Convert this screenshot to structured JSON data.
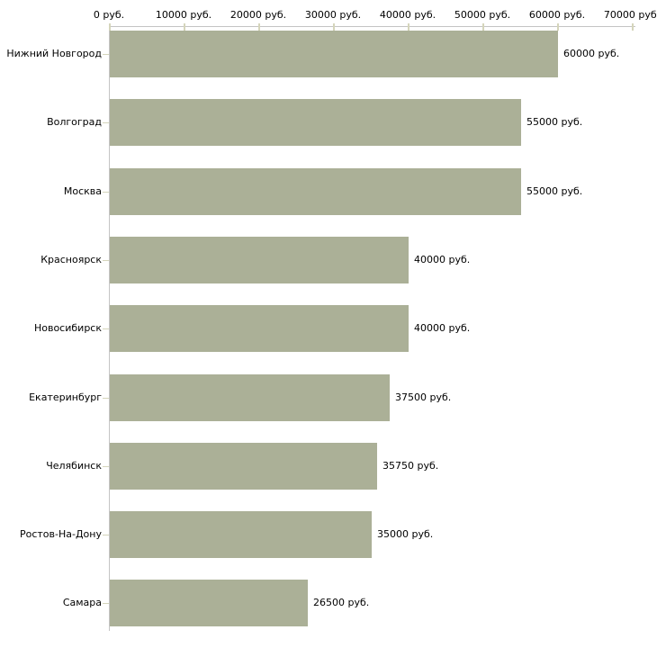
{
  "chart_data": {
    "type": "bar",
    "orientation": "horizontal",
    "title": "",
    "xlabel": "",
    "ylabel": "",
    "categories": [
      "Нижний Новгород",
      "Волгоград",
      "Москва",
      "Красноярск",
      "Новосибирск",
      "Екатеринбург",
      "Челябинск",
      "Ростов-На-Дону",
      "Самара"
    ],
    "values": [
      60000,
      55000,
      55000,
      40000,
      40000,
      37500,
      35750,
      35000,
      26500
    ],
    "value_labels": [
      "60000 руб.",
      "55000 руб.",
      "55000 руб.",
      "40000 руб.",
      "40000 руб.",
      "37500 руб.",
      "35750 руб.",
      "35000 руб.",
      "26500 руб."
    ],
    "x_axis": {
      "position": "top",
      "min": 0,
      "max": 70000,
      "tick_values": [
        0,
        10000,
        20000,
        30000,
        40000,
        50000,
        60000,
        70000
      ],
      "tick_labels": [
        "0 руб.",
        "10000 руб.",
        "20000 руб.",
        "30000 руб.",
        "40000 руб.",
        "50000 руб.",
        "60000 руб.",
        "70000 руб."
      ]
    },
    "grid": false,
    "legend": false,
    "colors": {
      "bar": "#abb097",
      "axis_line": "#c4c4c4",
      "tick_mark": "#d5d5bb",
      "text": "#000000",
      "background": "#ffffff"
    }
  }
}
